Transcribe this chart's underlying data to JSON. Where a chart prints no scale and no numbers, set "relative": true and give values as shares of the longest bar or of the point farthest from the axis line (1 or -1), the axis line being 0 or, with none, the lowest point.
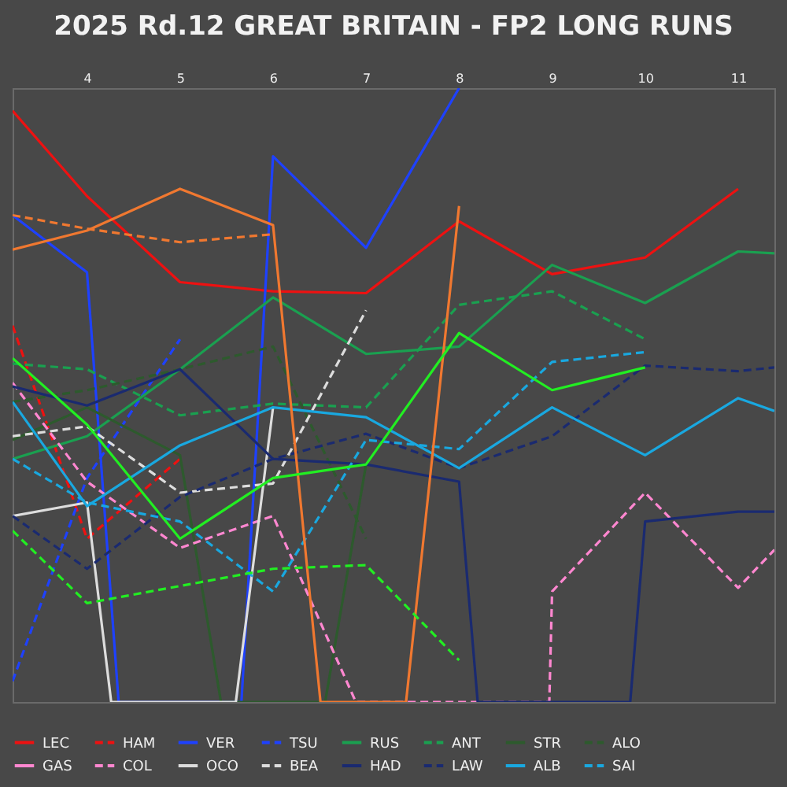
{
  "chart_data": {
    "type": "line",
    "title": "2025 Rd.12 GREAT BRITAIN - FP2 LONG RUNS",
    "relative": true,
    "xlim": [
      3.2,
      11.39
    ],
    "xticks": [
      4,
      5,
      6,
      7,
      8,
      9,
      10,
      11
    ],
    "legend": "bottom",
    "series": [
      {
        "name": "LEC",
        "color": "#ee1111",
        "line_style": "solid",
        "x": [
          3.2,
          4,
          5,
          6,
          7,
          8,
          9,
          10,
          11
        ],
        "values": [
          0.963,
          0.824,
          0.684,
          0.669,
          0.666,
          0.783,
          0.697,
          0.724,
          0.836
        ]
      },
      {
        "name": "HAM",
        "color": "#ee1111",
        "line_style": "dashed",
        "x": [
          3.2,
          4,
          5
        ],
        "values": [
          0.613,
          0.266,
          0.396
        ]
      },
      {
        "name": "VER",
        "color": "#1e41ff",
        "line_style": "solid",
        "x": [
          3.2,
          4,
          4.34,
          5.66,
          6,
          7,
          8
        ],
        "values": [
          0.793,
          0.7,
          0,
          0,
          0.889,
          0.74,
          1
        ]
      },
      {
        "name": "TSU",
        "color": "#1e41ff",
        "line_style": "dashed",
        "x": [
          3.2,
          4,
          5
        ],
        "values": [
          0.034,
          0.365,
          0.591
        ]
      },
      {
        "name": "RUS",
        "color": "#1aa050",
        "line_style": "solid",
        "x": [
          3.2,
          4,
          5,
          6,
          7,
          8,
          9,
          10,
          11,
          11.39
        ],
        "values": [
          0.396,
          0.433,
          0.542,
          0.659,
          0.567,
          0.579,
          0.712,
          0.65,
          0.734,
          0.731
        ]
      },
      {
        "name": "ANT",
        "color": "#1aa050",
        "line_style": "dashed",
        "x": [
          3.2,
          4,
          5,
          6,
          7,
          8,
          9,
          10
        ],
        "values": [
          0.551,
          0.542,
          0.467,
          0.486,
          0.48,
          0.647,
          0.669,
          0.591
        ]
      },
      {
        "name": "STR",
        "color": "#2d5a2d",
        "line_style": "solid",
        "x": [
          3.2,
          4,
          5,
          5.44,
          6.56,
          7
        ],
        "values": [
          0.427,
          0.48,
          0.402,
          0,
          0,
          0.387
        ]
      },
      {
        "name": "ALO",
        "color": "#2d5a2d",
        "line_style": "dashed",
        "x": [
          3.2,
          4,
          5,
          6,
          7
        ],
        "values": [
          0.489,
          0.508,
          0.542,
          0.579,
          0.266
        ]
      },
      {
        "name": "GAS",
        "color": "#ff87d0",
        "line_style": "solid"
      },
      {
        "name": "COL",
        "color": "#ff87d0",
        "line_style": "dashed",
        "x": [
          3.2,
          4,
          5,
          6,
          6.89,
          8.97,
          9,
          10,
          11,
          11.39
        ],
        "values": [
          0.52,
          0.359,
          0.251,
          0.303,
          0,
          0,
          0.18,
          0.341,
          0.186,
          0.248
        ]
      },
      {
        "name": "OCO",
        "color": "#dddddd",
        "line_style": "solid",
        "x": [
          3.2,
          4,
          4.26,
          5.6,
          6
        ],
        "values": [
          0.303,
          0.325,
          0,
          0,
          0.48
        ]
      },
      {
        "name": "BEA",
        "color": "#dddddd",
        "line_style": "dashed",
        "x": [
          3.2,
          4,
          5,
          6,
          7
        ],
        "values": [
          0.433,
          0.449,
          0.341,
          0.356,
          0.638
        ]
      },
      {
        "name": "HAD",
        "color": "#1a2a70",
        "line_style": "solid",
        "x": [
          3.2,
          4,
          5,
          6,
          7,
          8,
          8.2,
          9.84,
          10,
          11,
          11.39
        ],
        "values": [
          0.514,
          0.483,
          0.542,
          0.396,
          0.387,
          0.359,
          0,
          0,
          0.294,
          0.31,
          0.31
        ]
      },
      {
        "name": "LAW",
        "color": "#1a2a70",
        "line_style": "dashed",
        "x": [
          3.2,
          4,
          5,
          6,
          7,
          8,
          9,
          10,
          11,
          11.39
        ],
        "values": [
          0.303,
          0.217,
          0.334,
          0.396,
          0.437,
          0.381,
          0.433,
          0.548,
          0.539,
          0.545
        ]
      },
      {
        "name": "ALB",
        "color": "#19a8e0",
        "line_style": "solid",
        "x": [
          3.2,
          4,
          5,
          6,
          7,
          8,
          9,
          10,
          11,
          11.39
        ],
        "values": [
          0.489,
          0.319,
          0.418,
          0.48,
          0.464,
          0.381,
          0.48,
          0.402,
          0.495,
          0.474
        ]
      },
      {
        "name": "SAI",
        "color": "#19a8e0",
        "line_style": "dashed",
        "x": [
          3.2,
          4,
          5,
          6,
          7,
          8,
          9,
          10
        ],
        "values": [
          0.396,
          0.325,
          0.294,
          0.18,
          0.427,
          0.412,
          0.554,
          0.57
        ]
      },
      {
        "color": "#f07830",
        "line_style": "solid",
        "x": [
          3.2,
          4,
          5,
          6,
          6.51,
          7.43,
          8
        ],
        "values": [
          0.737,
          0.768,
          0.836,
          0.777,
          0,
          0,
          0.808
        ]
      },
      {
        "color": "#f07830",
        "line_style": "dashed",
        "x": [
          3.2,
          4,
          5,
          6
        ],
        "values": [
          0.793,
          0.771,
          0.749,
          0.762
        ]
      },
      {
        "color": "#22ee22",
        "line_style": "solid",
        "x": [
          3.2,
          4,
          5,
          6,
          7,
          8,
          9,
          10
        ],
        "values": [
          0.56,
          0.452,
          0.266,
          0.365,
          0.387,
          0.601,
          0.508,
          0.545
        ]
      },
      {
        "color": "#22ee22",
        "line_style": "dashed",
        "x": [
          3.2,
          4,
          5,
          6,
          7,
          8
        ],
        "values": [
          0.279,
          0.161,
          0.189,
          0.217,
          0.223,
          0.068
        ]
      }
    ]
  }
}
